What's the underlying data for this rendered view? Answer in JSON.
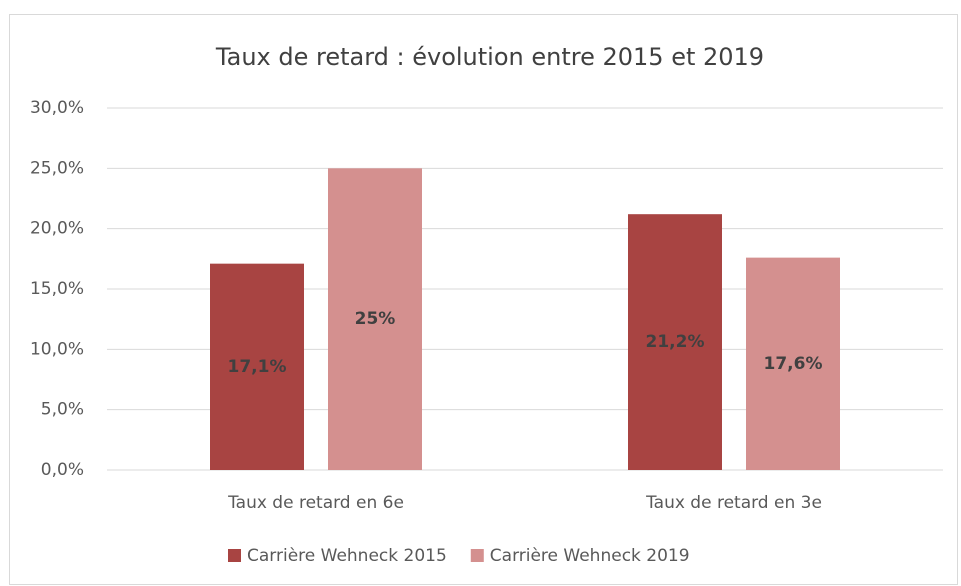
{
  "chart_data": {
    "type": "bar",
    "title": "Taux de retard : évolution entre 2015 et 2019",
    "categories": [
      "Taux de retard en 6e",
      "Taux de retard en 3e"
    ],
    "series": [
      {
        "name": "Carrière Wehneck 2015",
        "color": "#a84442",
        "values": [
          17.1,
          21.2
        ],
        "value_labels": [
          "17,1%",
          "21,2%"
        ]
      },
      {
        "name": "Carrière Wehneck 2019",
        "color": "#d4908f",
        "values": [
          25,
          17.6
        ],
        "value_labels": [
          "25%",
          "17,6%"
        ]
      }
    ],
    "ylim": [
      0,
      30
    ],
    "yticks": [
      {
        "value": 0,
        "label": "0,0%"
      },
      {
        "value": 5,
        "label": "5,0%"
      },
      {
        "value": 10,
        "label": "10,0%"
      },
      {
        "value": 15,
        "label": "15,0%"
      },
      {
        "value": 20,
        "label": "20,0%"
      },
      {
        "value": 25,
        "label": "25,0%"
      },
      {
        "value": 30,
        "label": "30,0%"
      }
    ],
    "grid": true,
    "legend": "bottom"
  }
}
